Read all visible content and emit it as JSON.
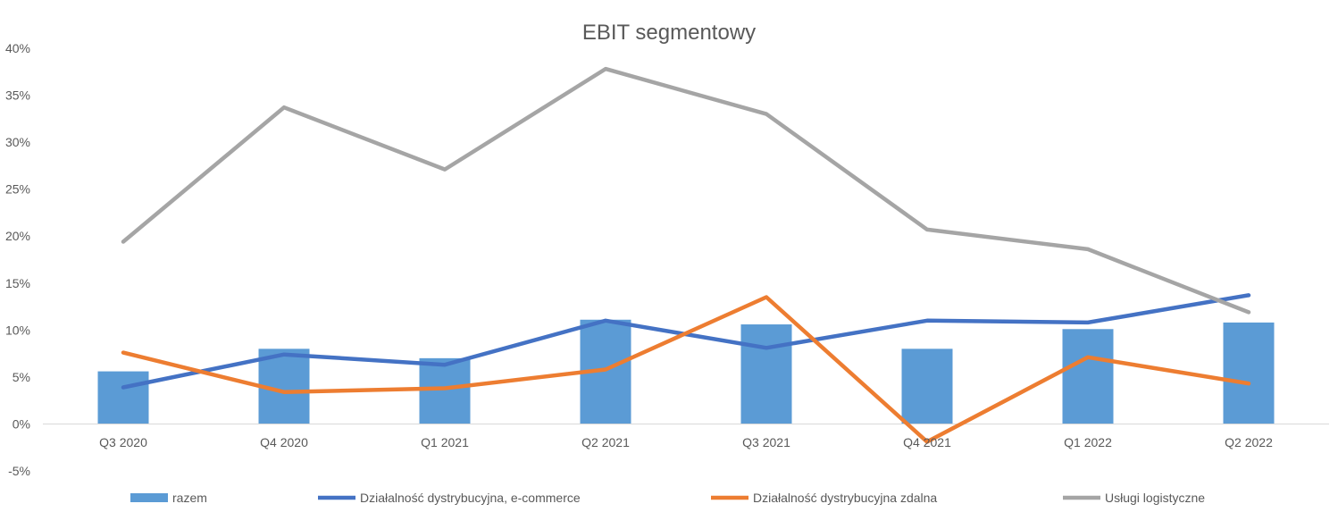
{
  "chart_data": {
    "type": "bar",
    "title": "EBIT segmentowy",
    "categories": [
      "Q3 2020",
      "Q4 2020",
      "Q1 2021",
      "Q2 2021",
      "Q3 2021",
      "Q4 2021",
      "Q1 2022",
      "Q2 2022"
    ],
    "y_ticks": [
      "40%",
      "35%",
      "30%",
      "25%",
      "20%",
      "15%",
      "10%",
      "5%",
      "0%",
      "-5%"
    ],
    "ylim": [
      -5,
      40
    ],
    "y_unit": "%",
    "grid": false,
    "legend_position": "bottom",
    "series": [
      {
        "name": "razem",
        "type": "bar",
        "color": "#5b9bd5",
        "values": [
          5.6,
          8.0,
          7.0,
          11.1,
          10.6,
          8.0,
          10.1,
          10.8
        ]
      },
      {
        "name": "Działalność dystrybucyjna, e-commerce",
        "type": "line",
        "color": "#4472c4",
        "values": [
          3.9,
          7.4,
          6.3,
          11.0,
          8.1,
          11.0,
          10.8,
          13.7
        ]
      },
      {
        "name": "Działalność dystrybucyjna zdalna",
        "type": "line",
        "color": "#ed7d31",
        "values": [
          7.6,
          3.4,
          3.8,
          5.8,
          13.5,
          -1.9,
          7.1,
          4.3
        ]
      },
      {
        "name": "Usługi logistyczne",
        "type": "line",
        "color": "#a5a5a5",
        "values": [
          19.4,
          33.7,
          27.1,
          37.8,
          33.0,
          20.7,
          18.6,
          11.9
        ]
      }
    ]
  }
}
